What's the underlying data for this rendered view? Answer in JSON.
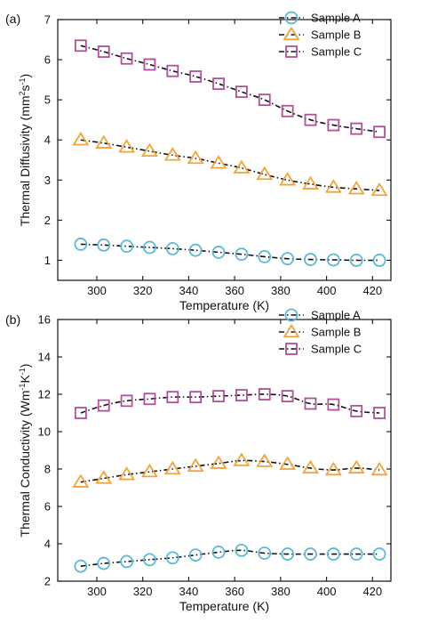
{
  "chart_data": [
    {
      "type": "line",
      "panel_label": "(a)",
      "title": "",
      "xlabel": "Temperature (K)",
      "ylabel_parts": [
        "Thermal Diffusivity (mm",
        "2",
        "s",
        "-1",
        ")"
      ],
      "xlim": [
        283,
        428
      ],
      "ylim": [
        0.5,
        7
      ],
      "xticks": [
        300,
        320,
        340,
        360,
        380,
        400,
        420
      ],
      "yticks": [
        1,
        2,
        3,
        4,
        5,
        6,
        7
      ],
      "legend_position": "top-right",
      "x": [
        293,
        303,
        313,
        323,
        333,
        343,
        353,
        363,
        373,
        383,
        393,
        403,
        413,
        423
      ],
      "series": [
        {
          "name": "Sample A",
          "marker": "circle",
          "color": "#5bbad5",
          "values": [
            1.4,
            1.38,
            1.35,
            1.32,
            1.29,
            1.25,
            1.2,
            1.15,
            1.09,
            1.04,
            1.02,
            1.01,
            1.0,
            1.0
          ]
        },
        {
          "name": "Sample B",
          "marker": "triangle",
          "color": "#f2a33a",
          "values": [
            4.0,
            3.92,
            3.82,
            3.72,
            3.62,
            3.54,
            3.42,
            3.3,
            3.14,
            3.0,
            2.9,
            2.82,
            2.78,
            2.74
          ]
        },
        {
          "name": "Sample C",
          "marker": "square",
          "color": "#b0509a",
          "values": [
            6.35,
            6.2,
            6.03,
            5.88,
            5.72,
            5.58,
            5.4,
            5.2,
            5.0,
            4.72,
            4.5,
            4.37,
            4.28,
            4.2
          ]
        }
      ]
    },
    {
      "type": "line",
      "panel_label": "(b)",
      "title": "",
      "xlabel": "Temperature (K)",
      "ylabel_parts": [
        "Thermal Conductivity (Wm",
        "-1",
        "K",
        "-1",
        ")"
      ],
      "xlim": [
        283,
        428
      ],
      "ylim": [
        2,
        16
      ],
      "xticks": [
        300,
        320,
        340,
        360,
        380,
        400,
        420
      ],
      "yticks": [
        2,
        4,
        6,
        8,
        10,
        12,
        14,
        16
      ],
      "legend_position": "top-right",
      "x": [
        293,
        303,
        313,
        323,
        333,
        343,
        353,
        363,
        373,
        383,
        393,
        403,
        413,
        423
      ],
      "series": [
        {
          "name": "Sample A",
          "marker": "circle",
          "color": "#5bbad5",
          "values": [
            2.8,
            2.95,
            3.05,
            3.15,
            3.25,
            3.4,
            3.55,
            3.65,
            3.5,
            3.45,
            3.45,
            3.45,
            3.45,
            3.45
          ]
        },
        {
          "name": "Sample B",
          "marker": "triangle",
          "color": "#f2a33a",
          "values": [
            7.3,
            7.5,
            7.7,
            7.85,
            8.0,
            8.15,
            8.3,
            8.45,
            8.4,
            8.25,
            8.05,
            7.95,
            8.05,
            7.95
          ]
        },
        {
          "name": "Sample C",
          "marker": "square",
          "color": "#b0509a",
          "values": [
            11.0,
            11.4,
            11.65,
            11.75,
            11.85,
            11.85,
            11.9,
            11.95,
            12.0,
            11.9,
            11.5,
            11.45,
            11.1,
            11.0
          ]
        }
      ]
    }
  ]
}
